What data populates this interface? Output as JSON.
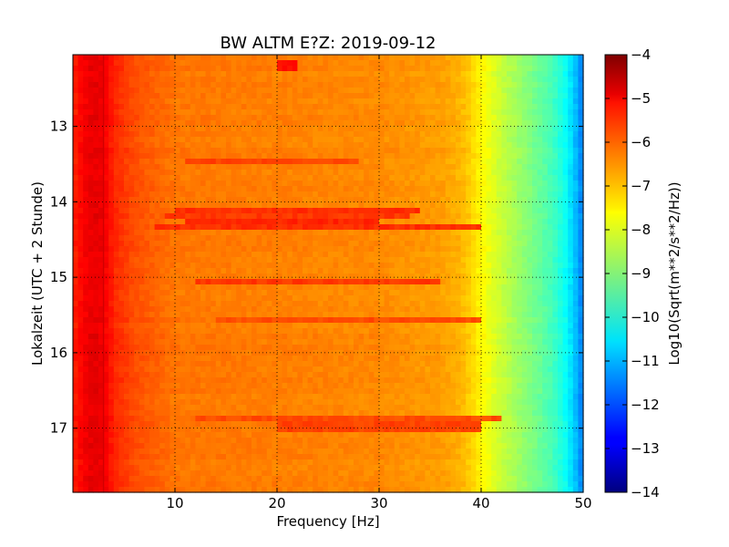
{
  "chart_data": {
    "type": "heatmap",
    "title": "BW ALTM E?Z: 2019-09-12",
    "xlabel": "Frequency [Hz]",
    "ylabel": "Lokalzeit (UTC + 2 Stunde)",
    "colorbar_label": "Log10(Sqrt(m**2/s**2/Hz))",
    "colormap": "jet",
    "xlim": [
      0,
      50
    ],
    "ylim": [
      12.05,
      17.85
    ],
    "y_inverted": true,
    "clim": [
      -14,
      -4
    ],
    "grid": true,
    "x_ticks": [
      {
        "value": 10,
        "label": "10"
      },
      {
        "value": 20,
        "label": "20"
      },
      {
        "value": 30,
        "label": "30"
      },
      {
        "value": 40,
        "label": "40"
      },
      {
        "value": 50,
        "label": "50"
      }
    ],
    "y_ticks": [
      {
        "value": 13,
        "label": "13"
      },
      {
        "value": 14,
        "label": "14"
      },
      {
        "value": 15,
        "label": "15"
      },
      {
        "value": 16,
        "label": "16"
      },
      {
        "value": 17,
        "label": "17"
      }
    ],
    "colorbar_ticks": [
      {
        "value": -4,
        "label": "−4"
      },
      {
        "value": -5,
        "label": "−5"
      },
      {
        "value": -6,
        "label": "−6"
      },
      {
        "value": -7,
        "label": "−7"
      },
      {
        "value": -8,
        "label": "−8"
      },
      {
        "value": -9,
        "label": "−9"
      },
      {
        "value": -10,
        "label": "−10"
      },
      {
        "value": -11,
        "label": "−11"
      },
      {
        "value": -12,
        "label": "−12"
      },
      {
        "value": -13,
        "label": "−13"
      },
      {
        "value": -14,
        "label": "−14"
      }
    ],
    "spectrum_profile": {
      "frequency_hz": [
        0,
        1,
        2,
        3,
        4,
        6,
        10,
        20,
        30,
        36,
        38,
        39,
        40,
        41,
        42,
        44,
        46,
        47,
        48,
        48.5,
        49,
        49.5,
        50
      ],
      "log10_amplitude": [
        -5.6,
        -5.2,
        -5.0,
        -5.1,
        -5.6,
        -6.0,
        -6.4,
        -6.5,
        -6.6,
        -6.8,
        -7.0,
        -7.3,
        -7.7,
        -8.0,
        -8.3,
        -8.8,
        -9.3,
        -9.6,
        -10.0,
        -10.3,
        -10.7,
        -11.1,
        -11.6
      ]
    },
    "horizontal_bands": [
      {
        "time": 14.12,
        "freq_range": [
          10,
          34
        ],
        "log10_amplitude": -5.7
      },
      {
        "time": 14.18,
        "freq_range": [
          9,
          33
        ],
        "log10_amplitude": -5.8
      },
      {
        "time": 14.25,
        "freq_range": [
          11,
          30
        ],
        "log10_amplitude": -5.6
      },
      {
        "time": 14.35,
        "freq_range": [
          8,
          40
        ],
        "log10_amplitude": -5.7
      },
      {
        "time": 13.45,
        "freq_range": [
          11,
          28
        ],
        "log10_amplitude": -5.9
      },
      {
        "time": 15.03,
        "freq_range": [
          12,
          36
        ],
        "log10_amplitude": -5.8
      },
      {
        "time": 15.55,
        "freq_range": [
          14,
          40
        ],
        "log10_amplitude": -6.0
      },
      {
        "time": 16.85,
        "freq_range": [
          12,
          42
        ],
        "log10_amplitude": -6.0
      },
      {
        "time": 16.98,
        "freq_range": [
          20,
          40
        ],
        "log10_amplitude": -5.9
      },
      {
        "time": 12.2,
        "freq_range": [
          20,
          22
        ],
        "log10_amplitude": -5.4
      }
    ],
    "vertical_lines": [
      {
        "frequency": 3.0,
        "log10_amplitude": -4.8
      }
    ]
  }
}
